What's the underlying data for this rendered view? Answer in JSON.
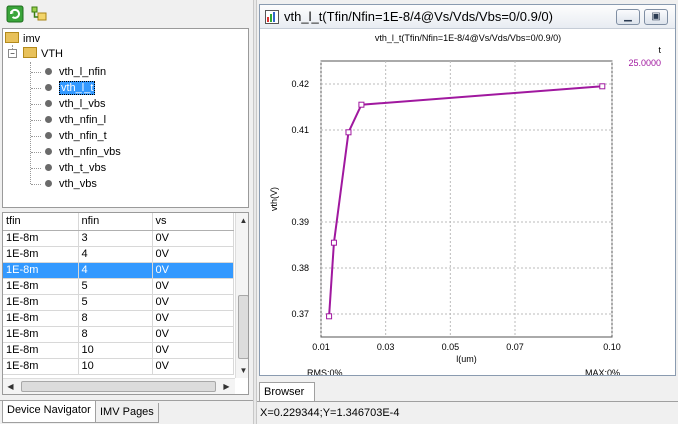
{
  "toolbar": {
    "refresh_icon": "refresh-icon",
    "tree_icon": "tree-view-icon"
  },
  "tree": {
    "root": "imv",
    "folder": "VTH",
    "items": [
      "vth_l_nfin",
      "vth_l_t",
      "vth_l_vbs",
      "vth_nfin_l",
      "vth_nfin_t",
      "vth_nfin_vbs",
      "vth_t_vbs",
      "vth_vbs"
    ],
    "selected_index": 1
  },
  "grid": {
    "columns": [
      "tfin",
      "nfin",
      "vs"
    ],
    "rows": [
      [
        "1E-8m",
        "3",
        "0V"
      ],
      [
        "1E-8m",
        "4",
        "0V"
      ],
      [
        "1E-8m",
        "4",
        "0V"
      ],
      [
        "1E-8m",
        "5",
        "0V"
      ],
      [
        "1E-8m",
        "5",
        "0V"
      ],
      [
        "1E-8m",
        "8",
        "0V"
      ],
      [
        "1E-8m",
        "8",
        "0V"
      ],
      [
        "1E-8m",
        "10",
        "0V"
      ],
      [
        "1E-8m",
        "10",
        "0V"
      ]
    ],
    "selected_row": 2
  },
  "tabs": {
    "device_navigator": "Device Navigator",
    "imv_pages": "IMV Pages"
  },
  "window": {
    "title": "vth_l_t(Tfin/Nfin=1E-8/4@Vs/Vds/Vbs=0/0.9/0)"
  },
  "browser_tab": "Browser",
  "status": "X=0.229344;Y=1.346703E-4",
  "colors": {
    "series": "#a0189f",
    "selection": "#3399ff"
  },
  "chart_data": {
    "type": "line",
    "title": "vth_l_t(Tfin/Nfin=1E-8/4@Vs/Vds/Vbs=0/0.9/0)",
    "xlabel": "l(um)",
    "ylabel": "vth(V)",
    "xlim": [
      0.01,
      0.1
    ],
    "ylim": [
      0.365,
      0.425
    ],
    "xticks": [
      "0.01",
      "0.03",
      "0.05",
      "0.07",
      "0.10"
    ],
    "xtick_values": [
      0.01,
      0.03,
      0.05,
      0.07,
      0.1
    ],
    "yticks": [
      "0.37",
      "0.38",
      "0.39",
      "0.41",
      "0.42"
    ],
    "ytick_values": [
      0.37,
      0.38,
      0.39,
      0.41,
      0.42
    ],
    "grid": true,
    "legend": {
      "header": "t",
      "entries": [
        "25.0000"
      ]
    },
    "series": [
      {
        "name": "25.0000",
        "x": [
          0.0125,
          0.014,
          0.0185,
          0.0225,
          0.097
        ],
        "y": [
          0.3695,
          0.3855,
          0.4095,
          0.4155,
          0.4195
        ]
      }
    ],
    "rms": "RMS:0%",
    "max": "MAX:0%"
  }
}
